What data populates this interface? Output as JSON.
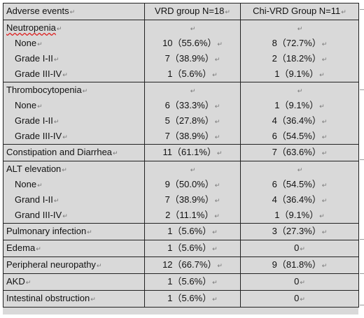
{
  "table": {
    "header": [
      "Adverse events",
      "VRD group N=18",
      "Chi-VRD Group N=11"
    ],
    "rows": [
      {
        "label": "Neutropenia",
        "lines": [
          {
            "label": "None",
            "vrd": "10（55.6%）",
            "chi": "8（72.7%）"
          },
          {
            "label": "Grade I-II",
            "vrd": "7（38.9%）",
            "chi": "2（18.2%）"
          },
          {
            "label": "Grade III-IV",
            "vrd": "1（5.6%）",
            "chi": "1（9.1%）"
          }
        ]
      },
      {
        "label": "Thrombocytopenia",
        "lines": [
          {
            "label": "None",
            "vrd": "6（33.3%）",
            "chi": "1（9.1%）"
          },
          {
            "label": "Grade I-II",
            "vrd": "5（27.8%）",
            "chi": "4（36.4%）"
          },
          {
            "label": "Grade III-IV",
            "vrd": "7（38.9%）",
            "chi": "6（54.5%）"
          }
        ]
      },
      {
        "label": "Constipation and Diarrhea",
        "vrd": "11（61.1%）",
        "chi": "7（63.6%）"
      },
      {
        "label": "ALT elevation",
        "lines": [
          {
            "label": "None",
            "vrd": "9（50.0%）",
            "chi": "6（54.5%）"
          },
          {
            "label": "Grand I-II",
            "vrd": "7（38.9%）",
            "chi": "4（36.4%）"
          },
          {
            "label": "Grand III-IV",
            "vrd": "2（11.1%）",
            "chi": "1（9.1%）"
          }
        ]
      },
      {
        "label": "Pulmonary infection",
        "vrd": "1（5.6%）",
        "chi": "3（27.3%）"
      },
      {
        "label": "Edema",
        "vrd": "1（5.6%）",
        "chi": "0"
      },
      {
        "label": "Peripheral neuropathy",
        "vrd": "12（66.7%）",
        "chi": "9（81.8%）"
      },
      {
        "label": "AKD",
        "vrd": "1（5.6%）",
        "chi": "0"
      },
      {
        "label": "Intestinal obstruction",
        "vrd": "1（5.6%）",
        "chi": "0"
      }
    ]
  }
}
